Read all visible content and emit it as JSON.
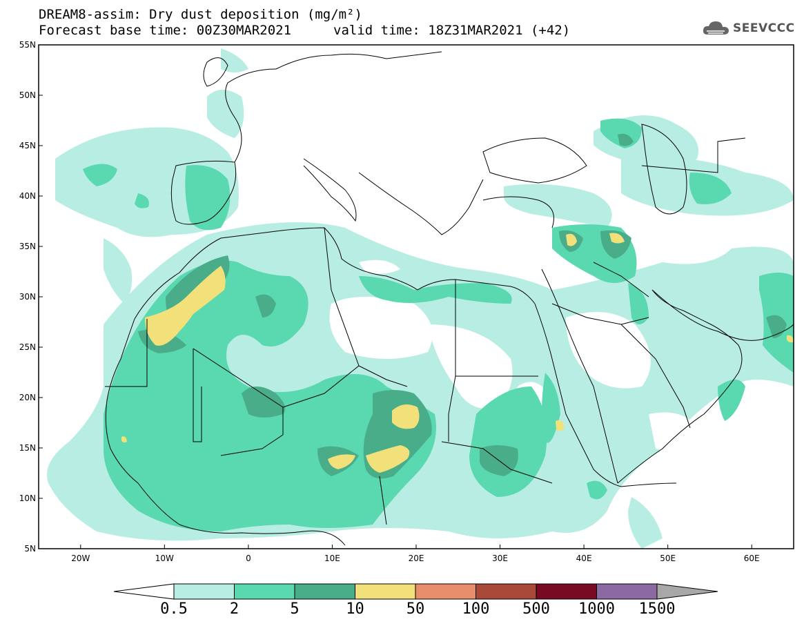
{
  "title": {
    "line1": "DREAM8-assim: Dry dust deposition (mg/m²)",
    "base_time": "Forecast base time: 00Z30MAR2021",
    "valid_time": "valid time: 18Z31MAR2021 (+42)"
  },
  "logo": {
    "text": "SEEVCCC",
    "icon": "cloud-icon"
  },
  "map": {
    "lon_range": [
      -25,
      65
    ],
    "lat_range": [
      5,
      55
    ],
    "lat_labels": [
      "55N",
      "50N",
      "45N",
      "40N",
      "35N",
      "30N",
      "25N",
      "20N",
      "15N",
      "10N",
      "5N"
    ],
    "lon_labels": [
      "20W",
      "10W",
      "0",
      "10E",
      "20E",
      "30E",
      "40E",
      "50E",
      "60E"
    ]
  },
  "colorbar": {
    "labels": [
      "0.5",
      "2",
      "5",
      "10",
      "50",
      "100",
      "500",
      "1000",
      "1500"
    ],
    "colors": [
      "#b8ede3",
      "#5ad8b0",
      "#4aad8a",
      "#f2e07a",
      "#e98e6a",
      "#a9493a",
      "#780a24",
      "#8a6aa0",
      "#a8a8a8"
    ],
    "under_color": "#ffffff"
  },
  "colors": {
    "level1": "#b8ede3",
    "level2": "#5ad8b0",
    "level3": "#4aad8a",
    "level4": "#f2e07a"
  }
}
